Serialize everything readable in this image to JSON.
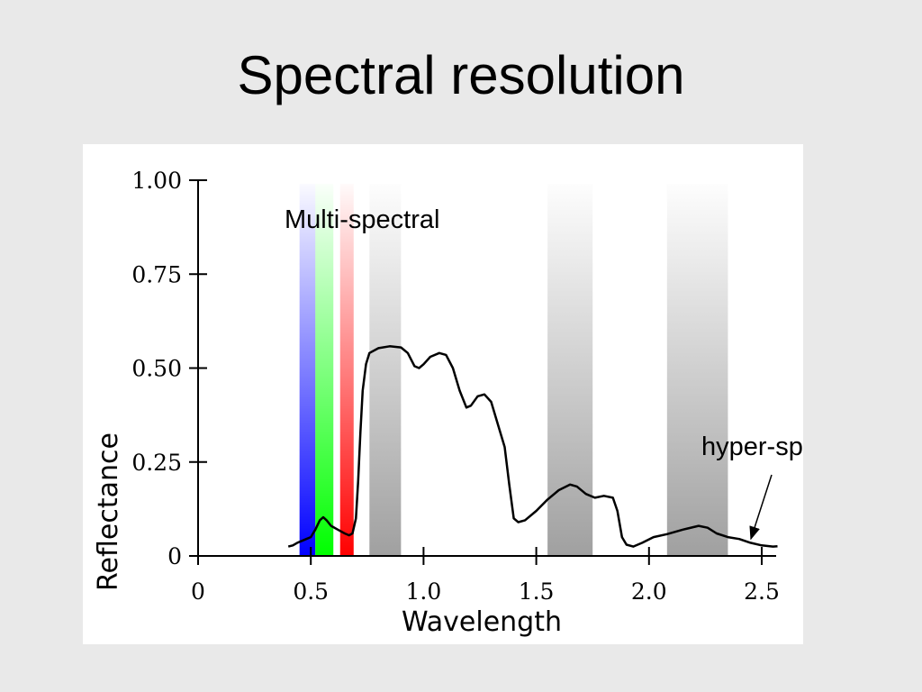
{
  "slide": {
    "title": "Spectral resolution"
  },
  "chart_data": {
    "type": "line",
    "xlabel": "Wavelength",
    "ylabel": "Reflectance",
    "xlim": [
      0,
      2.55
    ],
    "ylim": [
      0,
      1.0
    ],
    "x_ticks": [
      0,
      0.5,
      1.0,
      1.5,
      2.0,
      2.5
    ],
    "x_tick_labels": [
      "0",
      "0.5",
      "1.0",
      "1.5",
      "2.0",
      "2.5"
    ],
    "y_ticks": [
      0,
      0.25,
      0.5,
      0.75,
      1.0
    ],
    "y_tick_labels": [
      "0",
      "0.25",
      "0.50",
      "0.75",
      "1.00"
    ],
    "grid": false,
    "bands": [
      {
        "from": 0.45,
        "to": 0.52,
        "color": "#0000ff"
      },
      {
        "from": 0.52,
        "to": 0.6,
        "color": "#00ff00"
      },
      {
        "from": 0.63,
        "to": 0.69,
        "color": "#ff0000"
      },
      {
        "from": 0.76,
        "to": 0.9,
        "color": "#a0a0a0"
      },
      {
        "from": 1.55,
        "to": 1.75,
        "color": "#a0a0a0"
      },
      {
        "from": 2.08,
        "to": 2.35,
        "color": "#a0a0a0"
      }
    ],
    "series": [
      {
        "color": "#000000",
        "points": [
          [
            0.4,
            0.025
          ],
          [
            0.42,
            0.028
          ],
          [
            0.44,
            0.035
          ],
          [
            0.46,
            0.04
          ],
          [
            0.48,
            0.045
          ],
          [
            0.5,
            0.05
          ],
          [
            0.52,
            0.07
          ],
          [
            0.54,
            0.095
          ],
          [
            0.555,
            0.103
          ],
          [
            0.57,
            0.095
          ],
          [
            0.59,
            0.08
          ],
          [
            0.62,
            0.07
          ],
          [
            0.65,
            0.06
          ],
          [
            0.67,
            0.055
          ],
          [
            0.685,
            0.06
          ],
          [
            0.7,
            0.1
          ],
          [
            0.71,
            0.2
          ],
          [
            0.72,
            0.33
          ],
          [
            0.73,
            0.44
          ],
          [
            0.745,
            0.51
          ],
          [
            0.76,
            0.54
          ],
          [
            0.8,
            0.553
          ],
          [
            0.85,
            0.558
          ],
          [
            0.9,
            0.555
          ],
          [
            0.93,
            0.54
          ],
          [
            0.96,
            0.505
          ],
          [
            0.98,
            0.5
          ],
          [
            1.0,
            0.51
          ],
          [
            1.03,
            0.53
          ],
          [
            1.07,
            0.54
          ],
          [
            1.1,
            0.535
          ],
          [
            1.13,
            0.5
          ],
          [
            1.16,
            0.44
          ],
          [
            1.19,
            0.395
          ],
          [
            1.21,
            0.4
          ],
          [
            1.24,
            0.425
          ],
          [
            1.27,
            0.43
          ],
          [
            1.3,
            0.41
          ],
          [
            1.33,
            0.35
          ],
          [
            1.36,
            0.29
          ],
          [
            1.38,
            0.19
          ],
          [
            1.4,
            0.1
          ],
          [
            1.42,
            0.09
          ],
          [
            1.45,
            0.095
          ],
          [
            1.5,
            0.12
          ],
          [
            1.55,
            0.15
          ],
          [
            1.6,
            0.175
          ],
          [
            1.65,
            0.19
          ],
          [
            1.68,
            0.185
          ],
          [
            1.72,
            0.165
          ],
          [
            1.76,
            0.155
          ],
          [
            1.8,
            0.16
          ],
          [
            1.84,
            0.155
          ],
          [
            1.86,
            0.12
          ],
          [
            1.88,
            0.05
          ],
          [
            1.9,
            0.03
          ],
          [
            1.93,
            0.025
          ],
          [
            1.97,
            0.035
          ],
          [
            2.02,
            0.05
          ],
          [
            2.08,
            0.058
          ],
          [
            2.15,
            0.07
          ],
          [
            2.22,
            0.08
          ],
          [
            2.26,
            0.075
          ],
          [
            2.3,
            0.06
          ],
          [
            2.35,
            0.05
          ],
          [
            2.4,
            0.045
          ],
          [
            2.45,
            0.035
          ],
          [
            2.5,
            0.028
          ],
          [
            2.55,
            0.025
          ],
          [
            2.57,
            0.026
          ]
        ]
      }
    ],
    "annotations": [
      {
        "text": "Multi-spectral"
      },
      {
        "text": "hyper-spectral"
      }
    ]
  }
}
